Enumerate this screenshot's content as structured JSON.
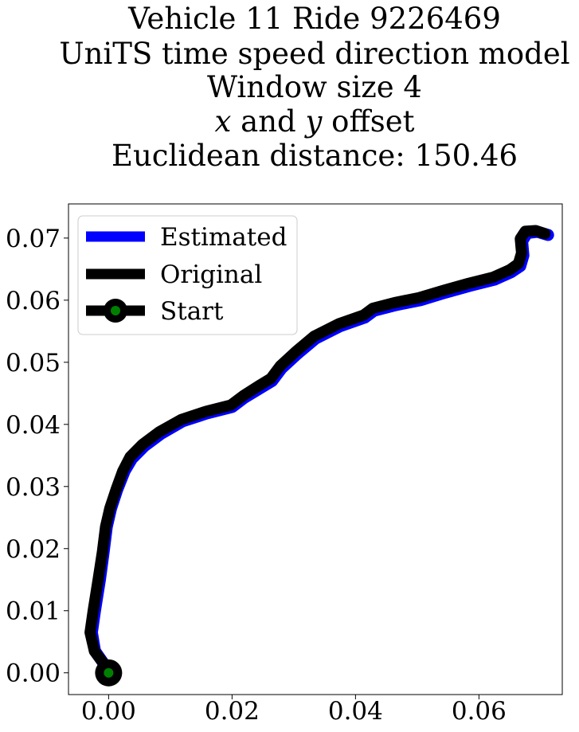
{
  "chart_data": {
    "type": "line",
    "title_lines": [
      "Vehicle 11 Ride 9226469",
      "UniTS time speed direction model",
      "Window size 4",
      "x and y offset",
      "Euclidean distance: 150.46"
    ],
    "xlabel": "",
    "ylabel": "",
    "xlim": [
      -0.0065,
      0.0735
    ],
    "ylim": [
      -0.0035,
      0.0755
    ],
    "x_ticks": [
      0.0,
      0.02,
      0.04,
      0.06
    ],
    "x_tick_labels": [
      "0.00",
      "0.02",
      "0.04",
      "0.06"
    ],
    "y_ticks": [
      0.0,
      0.01,
      0.02,
      0.03,
      0.04,
      0.05,
      0.06,
      0.07
    ],
    "y_tick_labels": [
      "0.00",
      "0.01",
      "0.02",
      "0.03",
      "0.04",
      "0.05",
      "0.06",
      "0.07"
    ],
    "grid": false,
    "legend_position": "upper-left",
    "series": [
      {
        "name": "Estimated",
        "color": "#0000ff",
        "points": [
          [
            0.0,
            0.0
          ],
          [
            -0.0008,
            0.0015
          ],
          [
            -0.0022,
            0.0035
          ],
          [
            -0.0027,
            0.0065
          ],
          [
            -0.0022,
            0.01
          ],
          [
            -0.0014,
            0.015
          ],
          [
            -0.0008,
            0.0195
          ],
          [
            -0.0003,
            0.0235
          ],
          [
            0.0004,
            0.0265
          ],
          [
            0.0014,
            0.0295
          ],
          [
            0.0026,
            0.0325
          ],
          [
            0.0038,
            0.0345
          ],
          [
            0.0058,
            0.0365
          ],
          [
            0.0085,
            0.0385
          ],
          [
            0.012,
            0.0405
          ],
          [
            0.016,
            0.0418
          ],
          [
            0.02,
            0.0428
          ],
          [
            0.022,
            0.0443
          ],
          [
            0.0245,
            0.0458
          ],
          [
            0.0265,
            0.047
          ],
          [
            0.028,
            0.049
          ],
          [
            0.0305,
            0.0513
          ],
          [
            0.0335,
            0.0538
          ],
          [
            0.0375,
            0.0558
          ],
          [
            0.0415,
            0.0572
          ],
          [
            0.043,
            0.0583
          ],
          [
            0.0465,
            0.0592
          ],
          [
            0.0505,
            0.06
          ],
          [
            0.0545,
            0.0612
          ],
          [
            0.0585,
            0.0623
          ],
          [
            0.0625,
            0.0633
          ],
          [
            0.0652,
            0.0645
          ],
          [
            0.0667,
            0.0655
          ],
          [
            0.0672,
            0.0672
          ],
          [
            0.067,
            0.0695
          ],
          [
            0.0678,
            0.0708
          ],
          [
            0.0695,
            0.071
          ],
          [
            0.0712,
            0.0705
          ]
        ]
      },
      {
        "name": "Original",
        "color": "#000000",
        "points": [
          [
            0.0,
            0.0
          ],
          [
            -0.0008,
            0.0015
          ],
          [
            -0.0023,
            0.0035
          ],
          [
            -0.003,
            0.0065
          ],
          [
            -0.0025,
            0.01
          ],
          [
            -0.0017,
            0.015
          ],
          [
            -0.001,
            0.0195
          ],
          [
            -0.0005,
            0.0235
          ],
          [
            0.0002,
            0.0265
          ],
          [
            0.0012,
            0.0295
          ],
          [
            0.0023,
            0.0325
          ],
          [
            0.0035,
            0.0348
          ],
          [
            0.0055,
            0.0368
          ],
          [
            0.0082,
            0.0388
          ],
          [
            0.0118,
            0.0408
          ],
          [
            0.0158,
            0.0421
          ],
          [
            0.0198,
            0.0431
          ],
          [
            0.0218,
            0.0446
          ],
          [
            0.0243,
            0.0462
          ],
          [
            0.0263,
            0.0474
          ],
          [
            0.0278,
            0.0494
          ],
          [
            0.0303,
            0.0517
          ],
          [
            0.0333,
            0.0542
          ],
          [
            0.0373,
            0.0562
          ],
          [
            0.0413,
            0.0576
          ],
          [
            0.0428,
            0.0587
          ],
          [
            0.0463,
            0.0596
          ],
          [
            0.0503,
            0.0604
          ],
          [
            0.0543,
            0.0616
          ],
          [
            0.0583,
            0.0627
          ],
          [
            0.0623,
            0.0637
          ],
          [
            0.065,
            0.0649
          ],
          [
            0.0664,
            0.0659
          ],
          [
            0.0669,
            0.0676
          ],
          [
            0.0667,
            0.0699
          ],
          [
            0.0675,
            0.0711
          ],
          [
            0.0692,
            0.0712
          ],
          [
            0.0707,
            0.0707
          ]
        ]
      }
    ],
    "start_point": {
      "name": "Start",
      "x": 0.0,
      "y": 0.0,
      "outer_color": "#000000",
      "inner_color": "#008000"
    }
  }
}
